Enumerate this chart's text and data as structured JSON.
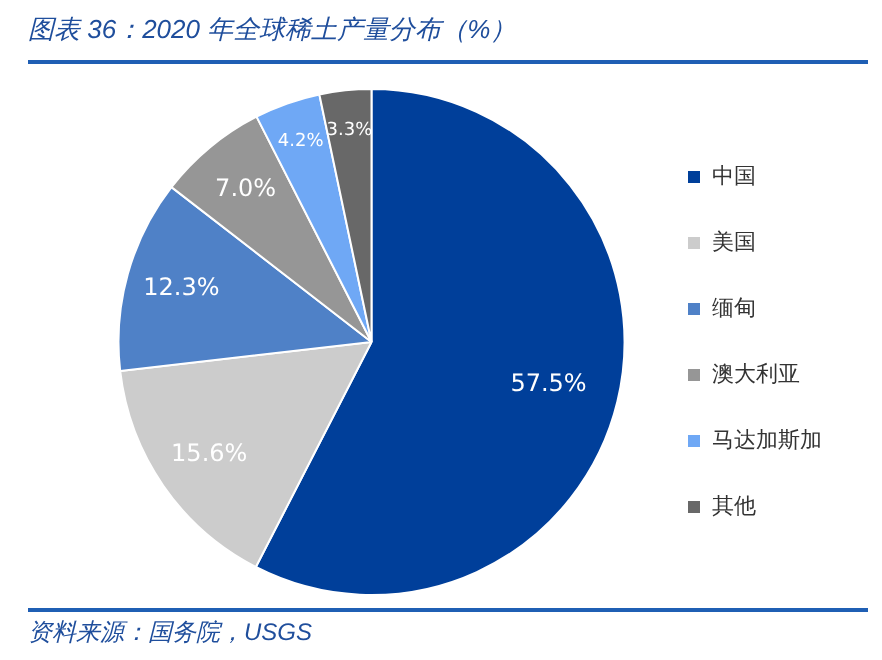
{
  "chart_data": {
    "type": "pie",
    "title": "图表 36：2020 年全球稀土产量分布（%）",
    "categories": [
      "中国",
      "美国",
      "缅甸",
      "澳大利亚",
      "马达加斯加",
      "其他"
    ],
    "values": [
      57.5,
      15.6,
      12.3,
      7.0,
      4.2,
      3.3
    ],
    "value_labels": [
      "57.5%",
      "15.6%",
      "12.3%",
      "7.0%",
      "4.2%",
      "3.3%"
    ],
    "colors": [
      "#003f9a",
      "#cccccc",
      "#4f81c7",
      "#969696",
      "#6fa8f5",
      "#686868"
    ],
    "legend": "right",
    "annotations": [
      "资料来源：国务院，USGS"
    ]
  }
}
